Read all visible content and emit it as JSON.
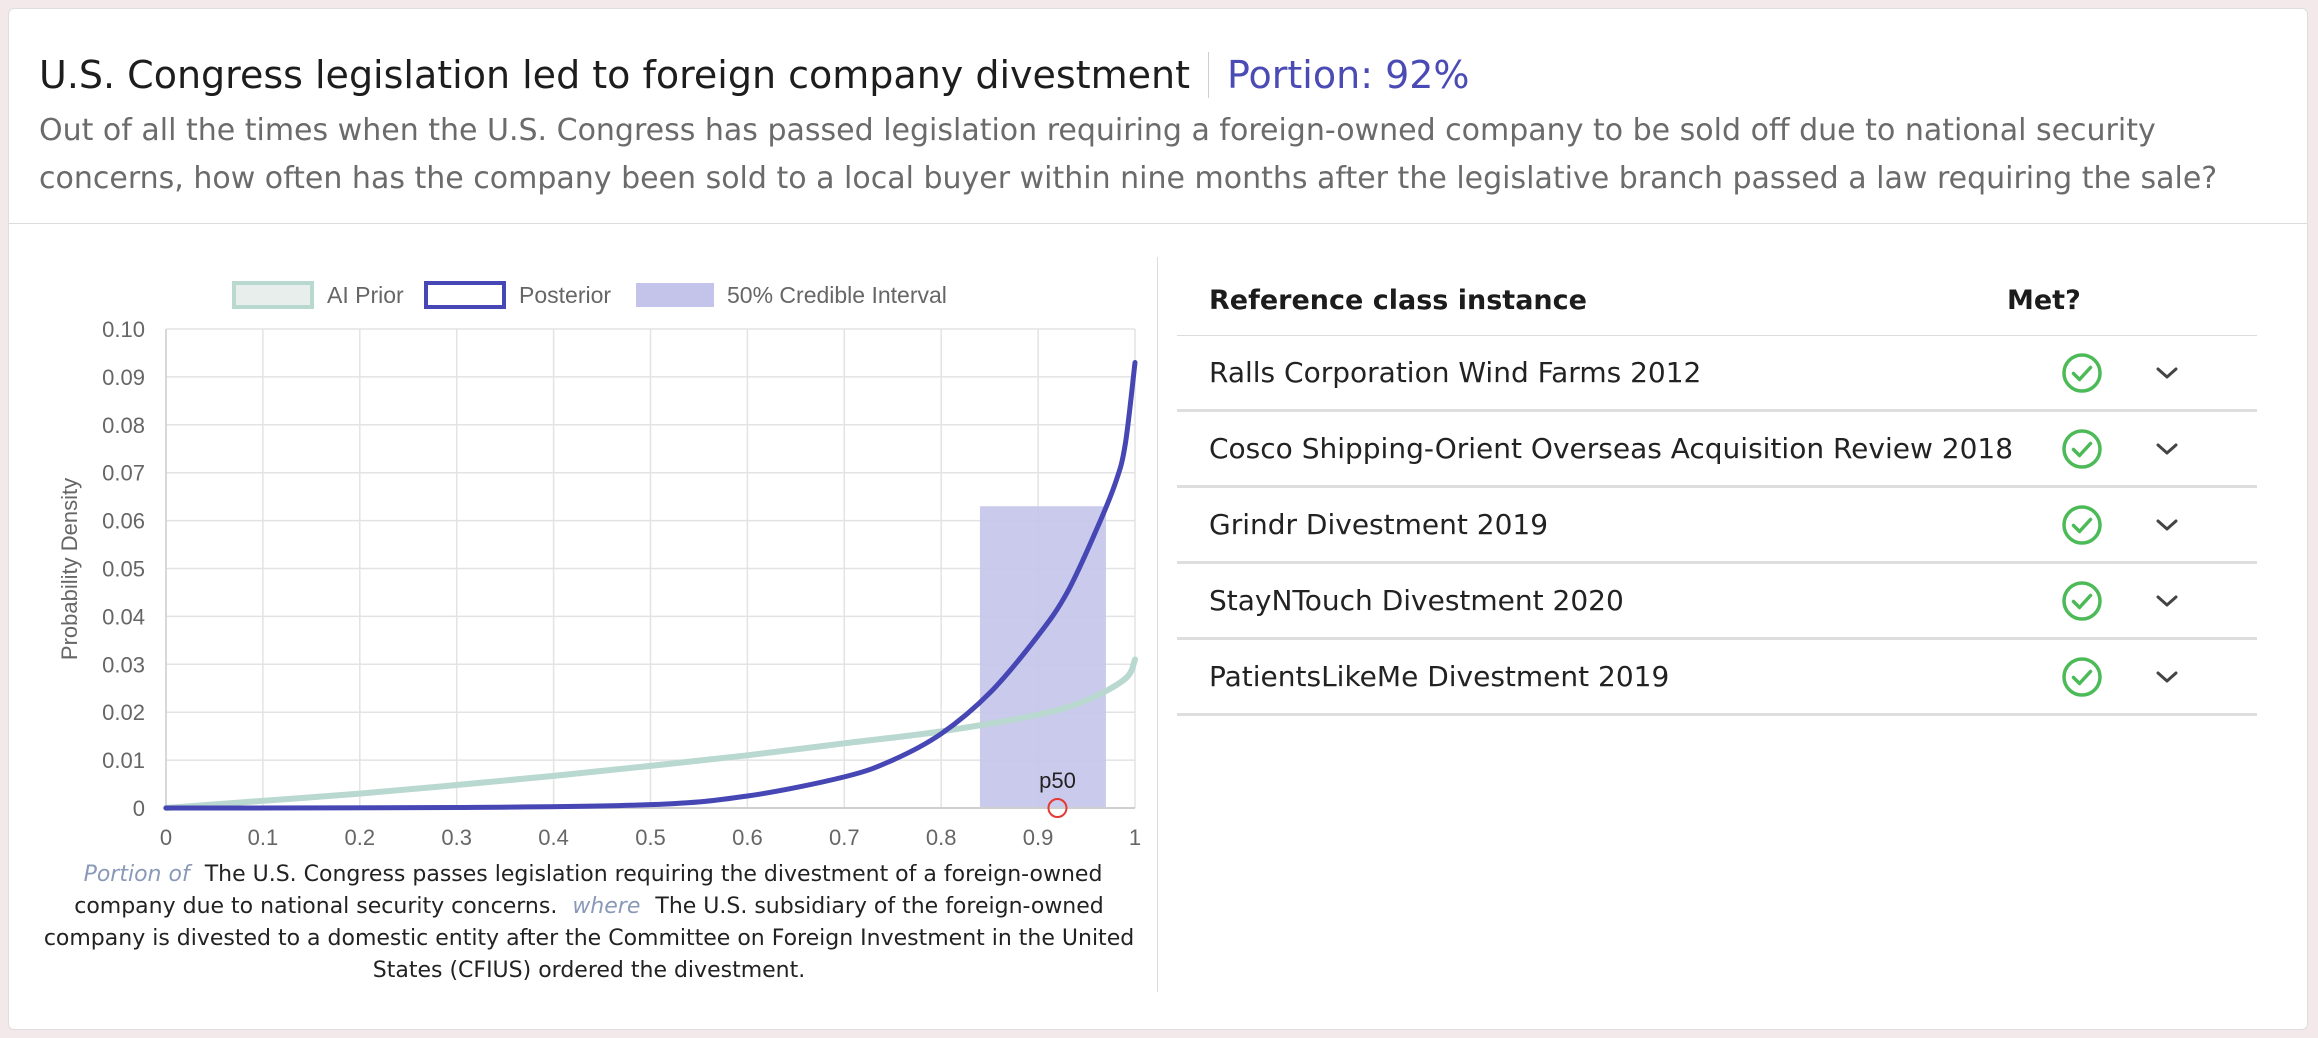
{
  "header": {
    "title": "U.S. Congress legislation led to foreign company divestment",
    "portion": "Portion: 92%",
    "question": "Out of all the times when the U.S. Congress has passed legislation requiring a foreign-owned company to be sold off due to national security concerns, how often has the company been sold to a local buyer within nine months after the legislative branch passed a law requiring the sale?"
  },
  "colors": {
    "prior": "#b9d8cf",
    "posterior": "#4646b4",
    "interval": "#c4c4ea",
    "p50": "#e53935",
    "check": "#4cba57",
    "accent": "#4b4bb5"
  },
  "chart_data": {
    "type": "line",
    "legend": [
      "AI Prior",
      "Posterior",
      "50% Credible Interval"
    ],
    "legend_position": "top",
    "ylabel": "Probability Density",
    "xlabel": "",
    "xlim": [
      0,
      1
    ],
    "ylim": [
      0,
      0.1
    ],
    "x_ticks": [
      "0",
      "0.1",
      "0.2",
      "0.3",
      "0.4",
      "0.5",
      "0.6",
      "0.7",
      "0.8",
      "0.9",
      "1"
    ],
    "y_ticks": [
      "0",
      "0.01",
      "0.02",
      "0.03",
      "0.04",
      "0.05",
      "0.06",
      "0.07",
      "0.08",
      "0.09",
      "0.10"
    ],
    "grid": true,
    "series": [
      {
        "name": "AI Prior",
        "x": [
          0,
          0.1,
          0.2,
          0.3,
          0.4,
          0.5,
          0.6,
          0.7,
          0.8,
          0.9,
          0.95,
          0.99,
          1.0
        ],
        "y": [
          0,
          0.0015,
          0.003,
          0.0048,
          0.0067,
          0.0088,
          0.011,
          0.0135,
          0.016,
          0.0195,
          0.0225,
          0.027,
          0.031
        ]
      },
      {
        "name": "Posterior",
        "x": [
          0,
          0.3,
          0.5,
          0.6,
          0.7,
          0.75,
          0.8,
          0.85,
          0.9,
          0.93,
          0.96,
          0.98,
          0.99,
          1.0
        ],
        "y": [
          0,
          0.0001,
          0.0007,
          0.0025,
          0.0065,
          0.01,
          0.0155,
          0.024,
          0.036,
          0.045,
          0.058,
          0.068,
          0.076,
          0.093
        ]
      }
    ],
    "interval": [
      0.84,
      0.97
    ],
    "p50": {
      "label": "p50",
      "x": 0.92
    }
  },
  "caption": {
    "portion_of_label": "Portion of",
    "portion_of_text": "The U.S. Congress passes legislation requiring the divestment of a foreign-owned company due to national security concerns.",
    "where_label": "where",
    "where_text": "The U.S. subsidiary of the foreign-owned company is divested to a domestic entity after the Committee on Foreign Investment in the United States (CFIUS) ordered the divestment."
  },
  "table": {
    "col_instance": "Reference class instance",
    "col_met": "Met?",
    "rows": [
      {
        "name": "Ralls Corporation Wind Farms 2012",
        "met": "check-circle-icon"
      },
      {
        "name": "Cosco Shipping-Orient Overseas Acquisition Review 2018",
        "met": "check-circle-icon"
      },
      {
        "name": "Grindr Divestment 2019",
        "met": "check-circle-icon"
      },
      {
        "name": "StayNTouch Divestment 2020",
        "met": "check-circle-icon"
      },
      {
        "name": "PatientsLikeMe Divestment 2019",
        "met": "check-circle-icon"
      }
    ]
  }
}
